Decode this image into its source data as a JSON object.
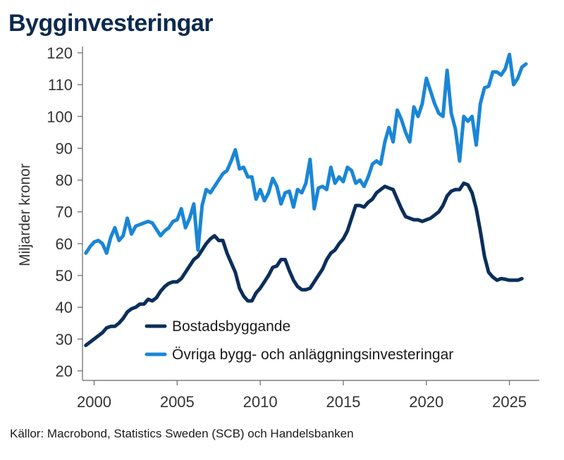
{
  "title": "Bygginvesteringar",
  "source": "Källor: Macrobond, Statistics Sweden (SCB) och Handelsbanken",
  "chart_data": {
    "type": "line",
    "ylabel": "Miljarder kronor",
    "xlim": [
      1999.3,
      2026.8
    ],
    "ylim": [
      17,
      122
    ],
    "yticks": [
      20,
      30,
      40,
      50,
      60,
      70,
      80,
      90,
      100,
      110,
      120
    ],
    "xticks": [
      2000,
      2005,
      2010,
      2015,
      2020,
      2025
    ],
    "legend_position": "lower-right",
    "series": [
      {
        "name": "Bostadsbyggande",
        "color": "#0b2e5b",
        "points": [
          [
            1999.5,
            28
          ],
          [
            1999.75,
            29
          ],
          [
            2000.0,
            30
          ],
          [
            2000.25,
            31
          ],
          [
            2000.5,
            32
          ],
          [
            2000.75,
            33.5
          ],
          [
            2001.0,
            34
          ],
          [
            2001.25,
            34
          ],
          [
            2001.5,
            35
          ],
          [
            2001.75,
            36.5
          ],
          [
            2002.0,
            38.5
          ],
          [
            2002.25,
            39.5
          ],
          [
            2002.5,
            40
          ],
          [
            2002.75,
            41
          ],
          [
            2003.0,
            41
          ],
          [
            2003.25,
            42.5
          ],
          [
            2003.5,
            42
          ],
          [
            2003.75,
            43
          ],
          [
            2004.0,
            45
          ],
          [
            2004.25,
            46.5
          ],
          [
            2004.5,
            47.5
          ],
          [
            2004.75,
            48
          ],
          [
            2005.0,
            48
          ],
          [
            2005.25,
            49
          ],
          [
            2005.5,
            51
          ],
          [
            2005.75,
            53
          ],
          [
            2006.0,
            55
          ],
          [
            2006.25,
            56
          ],
          [
            2006.5,
            58
          ],
          [
            2006.75,
            60
          ],
          [
            2007.0,
            61.5
          ],
          [
            2007.25,
            62.5
          ],
          [
            2007.5,
            61
          ],
          [
            2007.75,
            61
          ],
          [
            2008.0,
            57
          ],
          [
            2008.25,
            54
          ],
          [
            2008.5,
            51
          ],
          [
            2008.75,
            46
          ],
          [
            2009.0,
            43.5
          ],
          [
            2009.25,
            42
          ],
          [
            2009.5,
            42
          ],
          [
            2009.75,
            44.5
          ],
          [
            2010.0,
            46
          ],
          [
            2010.25,
            48
          ],
          [
            2010.5,
            50
          ],
          [
            2010.75,
            52.5
          ],
          [
            2011.0,
            53
          ],
          [
            2011.25,
            55
          ],
          [
            2011.5,
            55
          ],
          [
            2011.75,
            51.5
          ],
          [
            2012.0,
            48.5
          ],
          [
            2012.25,
            46.5
          ],
          [
            2012.5,
            45.5
          ],
          [
            2012.75,
            45.5
          ],
          [
            2013.0,
            46
          ],
          [
            2013.25,
            48
          ],
          [
            2013.5,
            50
          ],
          [
            2013.75,
            52
          ],
          [
            2014.0,
            55
          ],
          [
            2014.25,
            57
          ],
          [
            2014.5,
            58
          ],
          [
            2014.75,
            60
          ],
          [
            2015.0,
            61.5
          ],
          [
            2015.25,
            64
          ],
          [
            2015.5,
            68
          ],
          [
            2015.75,
            72
          ],
          [
            2016.0,
            72
          ],
          [
            2016.25,
            71.5
          ],
          [
            2016.5,
            73
          ],
          [
            2016.75,
            74
          ],
          [
            2017.0,
            76
          ],
          [
            2017.25,
            77
          ],
          [
            2017.5,
            78
          ],
          [
            2017.75,
            77.5
          ],
          [
            2018.0,
            77
          ],
          [
            2018.25,
            74
          ],
          [
            2018.5,
            71
          ],
          [
            2018.75,
            68.5
          ],
          [
            2019.0,
            68
          ],
          [
            2019.25,
            67.5
          ],
          [
            2019.5,
            67.5
          ],
          [
            2019.75,
            67
          ],
          [
            2020.0,
            67.5
          ],
          [
            2020.25,
            68
          ],
          [
            2020.5,
            69
          ],
          [
            2020.75,
            70
          ],
          [
            2021.0,
            72
          ],
          [
            2021.25,
            75
          ],
          [
            2021.5,
            76.5
          ],
          [
            2021.75,
            77
          ],
          [
            2022.0,
            77
          ],
          [
            2022.25,
            79
          ],
          [
            2022.5,
            78.5
          ],
          [
            2022.75,
            76
          ],
          [
            2023.0,
            71
          ],
          [
            2023.25,
            64
          ],
          [
            2023.5,
            56
          ],
          [
            2023.75,
            51
          ],
          [
            2024.0,
            49.5
          ],
          [
            2024.25,
            48.5
          ],
          [
            2024.5,
            49
          ],
          [
            2024.75,
            48.8
          ],
          [
            2025.0,
            48.5
          ],
          [
            2025.25,
            48.5
          ],
          [
            2025.5,
            48.5
          ],
          [
            2025.75,
            49
          ]
        ]
      },
      {
        "name": "Övriga bygg- och anläggningsinvesteringar",
        "color": "#1a86d6",
        "points": [
          [
            1999.5,
            57
          ],
          [
            1999.75,
            59
          ],
          [
            2000.0,
            60.5
          ],
          [
            2000.25,
            61
          ],
          [
            2000.5,
            60
          ],
          [
            2000.75,
            57
          ],
          [
            2001.0,
            62
          ],
          [
            2001.25,
            65
          ],
          [
            2001.5,
            61
          ],
          [
            2001.75,
            62.5
          ],
          [
            2002.0,
            68
          ],
          [
            2002.25,
            63
          ],
          [
            2002.5,
            65.5
          ],
          [
            2002.75,
            66
          ],
          [
            2003.0,
            66.5
          ],
          [
            2003.25,
            67
          ],
          [
            2003.5,
            66.5
          ],
          [
            2003.75,
            64.5
          ],
          [
            2004.0,
            62.5
          ],
          [
            2004.25,
            64
          ],
          [
            2004.5,
            65
          ],
          [
            2004.75,
            67
          ],
          [
            2005.0,
            67.5
          ],
          [
            2005.25,
            71
          ],
          [
            2005.5,
            65
          ],
          [
            2005.75,
            68
          ],
          [
            2006.0,
            72.5
          ],
          [
            2006.25,
            58
          ],
          [
            2006.5,
            72
          ],
          [
            2006.75,
            77
          ],
          [
            2007.0,
            76
          ],
          [
            2007.25,
            78
          ],
          [
            2007.5,
            80
          ],
          [
            2007.75,
            82
          ],
          [
            2008.0,
            83
          ],
          [
            2008.25,
            86
          ],
          [
            2008.5,
            89.5
          ],
          [
            2008.75,
            83.5
          ],
          [
            2009.0,
            84
          ],
          [
            2009.25,
            81
          ],
          [
            2009.5,
            81
          ],
          [
            2009.75,
            74
          ],
          [
            2010.0,
            77
          ],
          [
            2010.25,
            73.5
          ],
          [
            2010.5,
            76
          ],
          [
            2010.75,
            80.5
          ],
          [
            2011.0,
            78
          ],
          [
            2011.25,
            72.5
          ],
          [
            2011.5,
            76
          ],
          [
            2011.75,
            76.5
          ],
          [
            2012.0,
            71.5
          ],
          [
            2012.25,
            77
          ],
          [
            2012.5,
            76
          ],
          [
            2012.75,
            79
          ],
          [
            2013.0,
            86.5
          ],
          [
            2013.25,
            71
          ],
          [
            2013.5,
            77.5
          ],
          [
            2013.75,
            78
          ],
          [
            2014.0,
            77
          ],
          [
            2014.25,
            84
          ],
          [
            2014.5,
            79
          ],
          [
            2014.75,
            81
          ],
          [
            2015.0,
            79.5
          ],
          [
            2015.25,
            84
          ],
          [
            2015.5,
            83
          ],
          [
            2015.75,
            79
          ],
          [
            2016.0,
            80
          ],
          [
            2016.25,
            78
          ],
          [
            2016.5,
            81
          ],
          [
            2016.75,
            85
          ],
          [
            2017.0,
            86
          ],
          [
            2017.25,
            85
          ],
          [
            2017.5,
            92
          ],
          [
            2017.75,
            96.5
          ],
          [
            2018.0,
            92
          ],
          [
            2018.25,
            102
          ],
          [
            2018.5,
            99
          ],
          [
            2018.75,
            95
          ],
          [
            2019.0,
            92
          ],
          [
            2019.25,
            103
          ],
          [
            2019.5,
            100
          ],
          [
            2019.75,
            104
          ],
          [
            2020.0,
            112
          ],
          [
            2020.25,
            108
          ],
          [
            2020.5,
            104
          ],
          [
            2020.75,
            101
          ],
          [
            2021.0,
            100
          ],
          [
            2021.25,
            114.5
          ],
          [
            2021.5,
            101
          ],
          [
            2021.75,
            96
          ],
          [
            2022.0,
            86
          ],
          [
            2022.25,
            100
          ],
          [
            2022.5,
            98.5
          ],
          [
            2022.75,
            100
          ],
          [
            2023.0,
            91
          ],
          [
            2023.25,
            104
          ],
          [
            2023.5,
            109
          ],
          [
            2023.75,
            109.5
          ],
          [
            2024.0,
            114
          ],
          [
            2024.25,
            114
          ],
          [
            2024.5,
            113
          ],
          [
            2024.75,
            115
          ],
          [
            2025.0,
            119.5
          ],
          [
            2025.25,
            110
          ],
          [
            2025.5,
            112
          ],
          [
            2025.75,
            115.5
          ],
          [
            2026.0,
            116.5
          ]
        ]
      }
    ]
  }
}
